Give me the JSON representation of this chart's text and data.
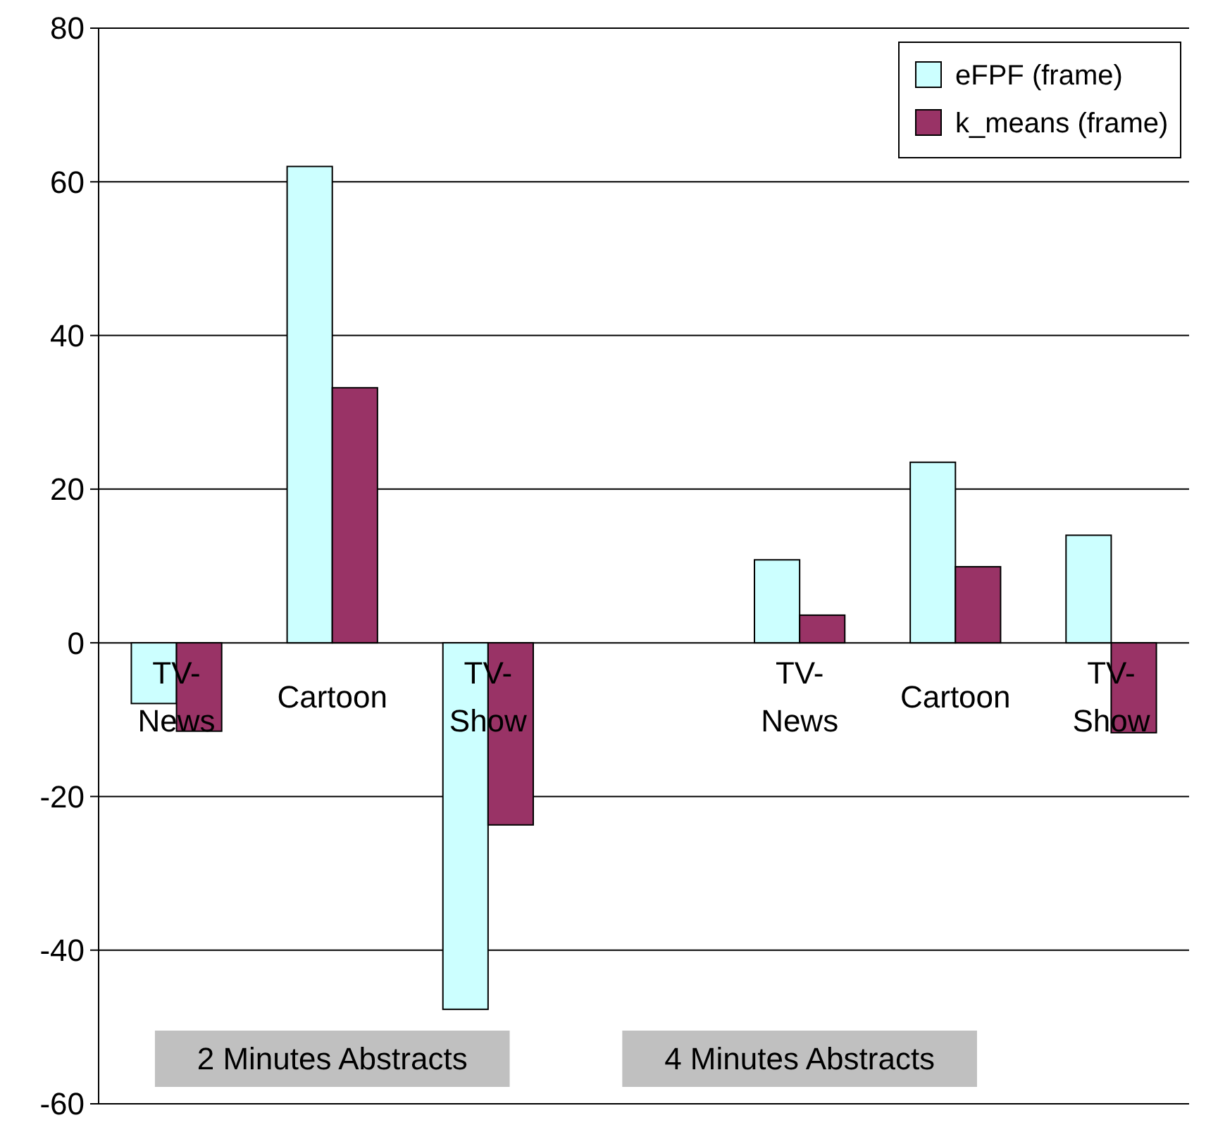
{
  "chart_data": {
    "type": "bar",
    "categories": [
      "TV-News",
      "Cartoon",
      "TV-Show",
      null,
      "TV-News",
      "Cartoon",
      "TV-Show"
    ],
    "series": [
      {
        "name": "eFPF (frame)",
        "color": "#ccffff",
        "values": [
          -7.9,
          62,
          -47.7,
          null,
          10.8,
          23.5,
          14
        ]
      },
      {
        "name": "k_means (frame)",
        "color": "#993366",
        "values": [
          -11.5,
          33.2,
          -23.7,
          null,
          3.6,
          9.9,
          -11.7
        ]
      }
    ],
    "ylim": [
      -60,
      80
    ],
    "yticks": [
      -60,
      -40,
      -20,
      0,
      20,
      40,
      60,
      80
    ],
    "grid": "y",
    "legend": "top right",
    "annotations": [
      "2 Minutes Abstracts",
      "4 Minutes Abstracts"
    ]
  }
}
